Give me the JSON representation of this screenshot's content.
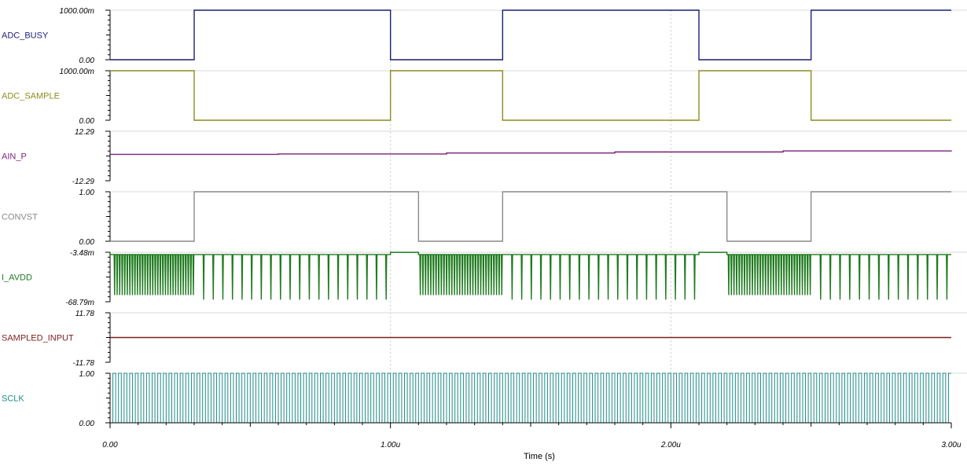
{
  "chart_data": {
    "type": "line",
    "subtype": "stacked-digital-waveforms",
    "xlabel": "Time (s)",
    "x_range": [
      0,
      3e-06
    ],
    "x_ticks": [
      {
        "value": 0,
        "label": "0.00"
      },
      {
        "value": 1e-06,
        "label": "1.00u"
      },
      {
        "value": 2e-06,
        "label": "2.00u"
      },
      {
        "value": 3e-06,
        "label": "3.00u"
      }
    ],
    "grid": "dashed vertical lines at major time ticks",
    "series": [
      {
        "name": "ADC_BUSY",
        "color": "#1a1f73",
        "ymax_label": "1000.00m",
        "ymin_label": "0.00",
        "yrange": [
          0,
          1
        ],
        "waveform": "step",
        "initial": 0,
        "transitions": [
          3e-07,
          1e-06,
          1.4e-06,
          2.1e-06,
          2.5e-06
        ]
      },
      {
        "name": "ADC_SAMPLE",
        "color": "#8c8c1e",
        "ymax_label": "1000.00m",
        "ymin_label": "0.00",
        "yrange": [
          0,
          1
        ],
        "waveform": "step",
        "initial": 1,
        "transitions": [
          3e-07,
          1e-06,
          1.4e-06,
          2.1e-06,
          2.5e-06
        ]
      },
      {
        "name": "AIN_P",
        "color": "#7b1f7b",
        "ymax_label": "12.29",
        "ymin_label": "-12.29",
        "yrange": [
          -12.29,
          12.29
        ],
        "waveform": "staircase",
        "x": [
          0,
          6e-07,
          1.2e-06,
          1.8e-06,
          2.4e-06,
          3e-06
        ],
        "values": [
          0.8,
          1.0,
          1.5,
          2.0,
          2.5,
          2.8
        ]
      },
      {
        "name": "CONVST",
        "color": "#8a8a8a",
        "ymax_label": "1.00",
        "ymin_label": "0.00",
        "yrange": [
          0,
          1
        ],
        "waveform": "step",
        "initial": 0,
        "transitions": [
          3e-07,
          1.1e-06,
          1.4e-06,
          2.2e-06,
          2.5e-06
        ]
      },
      {
        "name": "I_AVDD",
        "color": "#1e7a1e",
        "ymax_label": "-3.48m",
        "ymin_label": "-68.79m",
        "yrange": [
          -68.79,
          -3.48
        ],
        "waveform": "spikes",
        "baseline": -6.5,
        "quiet_level": -3.6,
        "spike_bursts": [
          {
            "start": 1e-08,
            "end": 3e-07,
            "count": 32,
            "depth": -60
          },
          {
            "start": 3.15e-07,
            "end": 1e-06,
            "count": 20,
            "depth": -66
          },
          {
            "start": 1.1e-06,
            "end": 1.4e-06,
            "count": 32,
            "depth": -60
          },
          {
            "start": 1.415e-06,
            "end": 2.1e-06,
            "count": 20,
            "depth": -66
          },
          {
            "start": 2.2e-06,
            "end": 2.5e-06,
            "count": 32,
            "depth": -60
          },
          {
            "start": 2.515e-06,
            "end": 3e-06,
            "count": 14,
            "depth": -66
          }
        ],
        "quiet_intervals": [
          [
            1e-06,
            1.1e-06
          ],
          [
            2.1e-06,
            2.2e-06
          ]
        ]
      },
      {
        "name": "SAMPLED_INPUT",
        "color": "#7a1f1f",
        "ymax_label": "11.78",
        "ymin_label": "-11.78",
        "yrange": [
          -11.78,
          11.78
        ],
        "waveform": "constant",
        "value": 0
      },
      {
        "name": "SCLK",
        "color": "#1f8a8a",
        "ymax_label": "1.00",
        "ymin_label": "0.00",
        "yrange": [
          0,
          1
        ],
        "waveform": "clock",
        "period": 2e-08
      }
    ]
  }
}
